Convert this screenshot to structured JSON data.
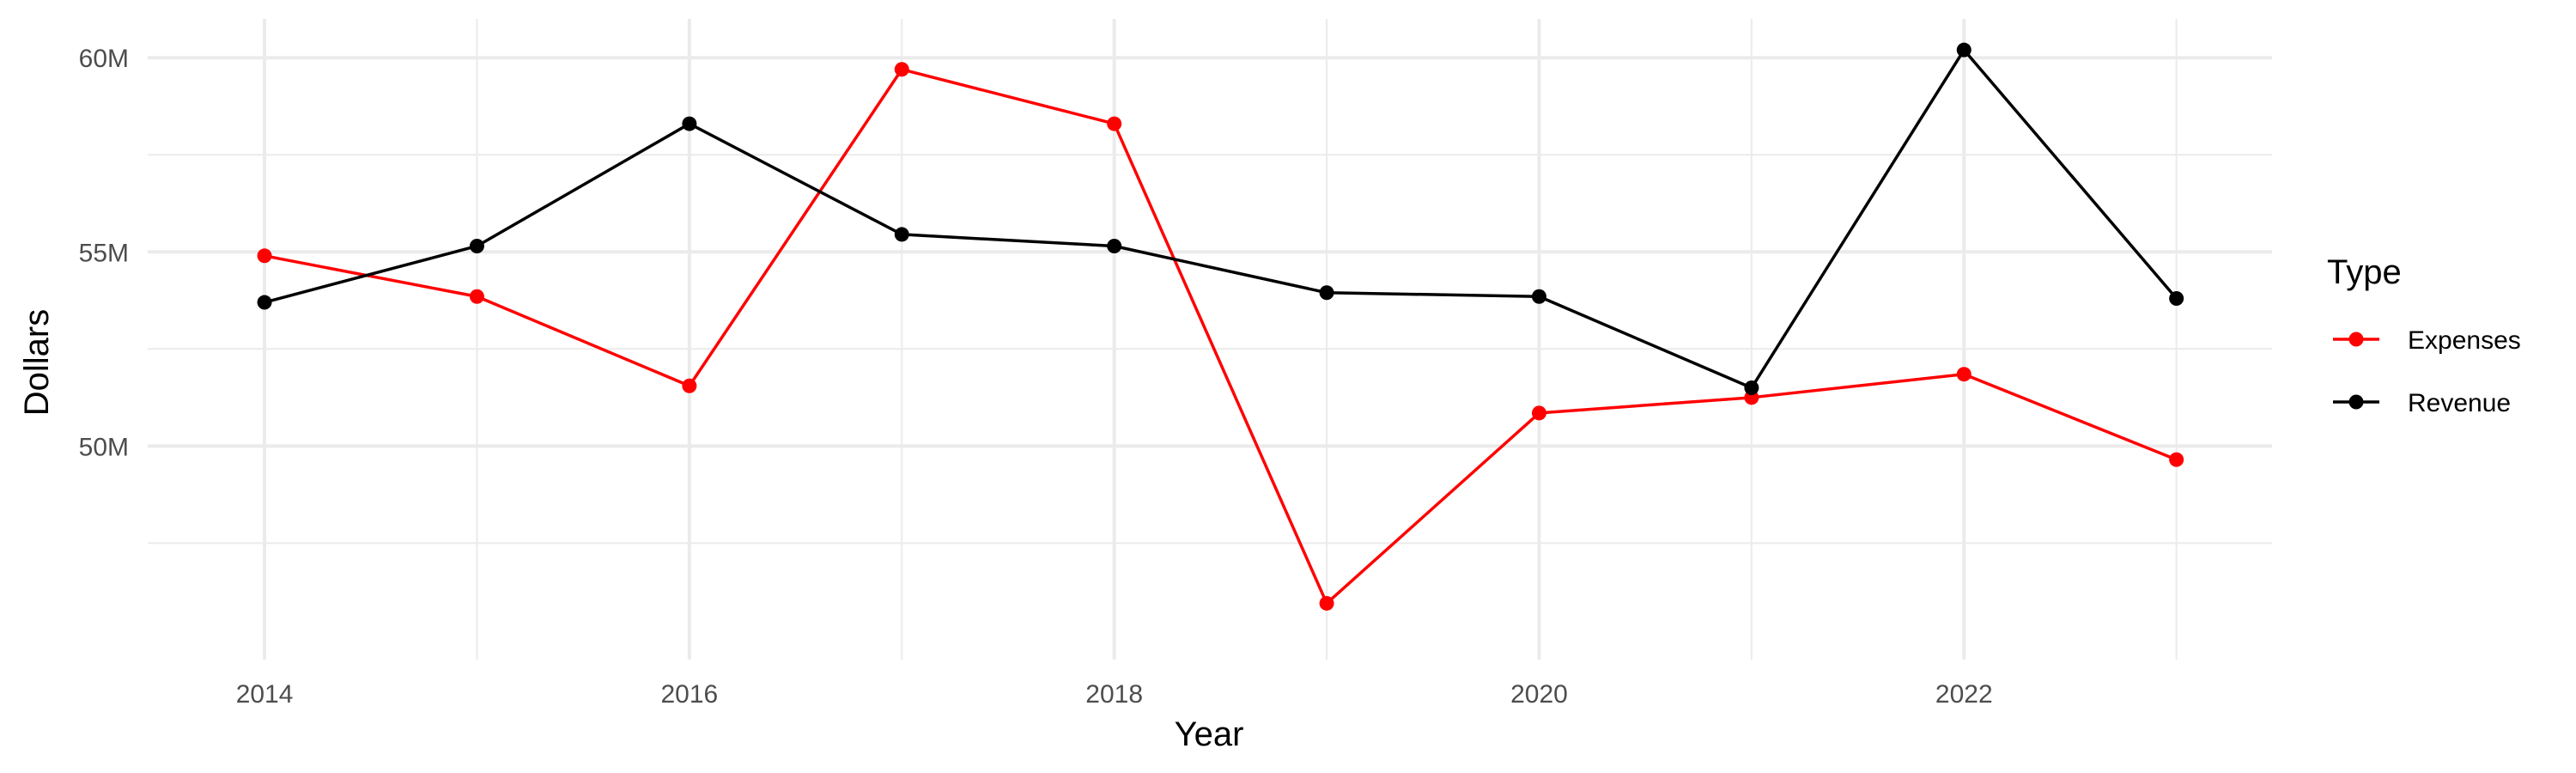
{
  "chart_data": {
    "type": "line",
    "title": "",
    "xlabel": "Year",
    "ylabel": "Dollars",
    "x": [
      2014,
      2015,
      2016,
      2017,
      2018,
      2019,
      2020,
      2021,
      2022,
      2023
    ],
    "x_ticks": [
      2014,
      2016,
      2018,
      2020,
      2022
    ],
    "x_tick_labels": [
      "2014",
      "2016",
      "2018",
      "2020",
      "2022"
    ],
    "xlim": [
      2013.45,
      2023.45
    ],
    "y_ticks": [
      50000000,
      55000000,
      60000000
    ],
    "y_tick_labels": [
      "50M",
      "55M",
      "60M"
    ],
    "ylim": [
      44500000,
      61000000
    ],
    "grid": true,
    "legend": {
      "title": "Type",
      "position": "right"
    },
    "series": [
      {
        "name": "Expenses",
        "color": "#ff0000",
        "values": [
          54900000,
          53850000,
          51550000,
          59700000,
          58300000,
          45950000,
          50850000,
          51250000,
          51850000,
          49650000
        ]
      },
      {
        "name": "Revenue",
        "color": "#000000",
        "values": [
          53700000,
          55150000,
          58300000,
          55450000,
          55150000,
          53950000,
          53850000,
          51500000,
          60200000,
          53800000
        ]
      }
    ]
  }
}
